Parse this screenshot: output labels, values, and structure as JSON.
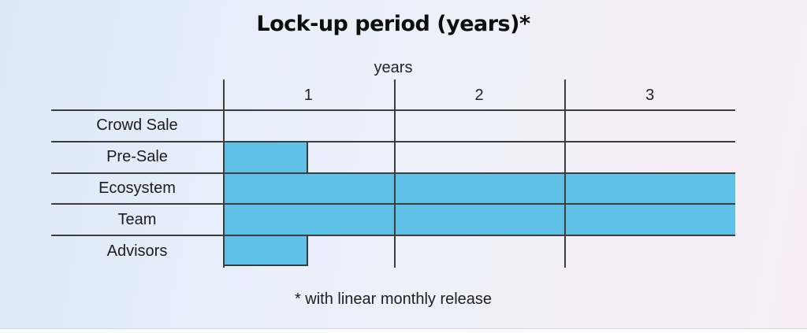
{
  "page": {
    "background_gradient": [
      "#dce8f8",
      "#f8edf5"
    ]
  },
  "chart_data": {
    "type": "bar",
    "orientation": "horizontal",
    "title": "Lock-up period (years)*",
    "axis_title": "years",
    "categories": [
      "Crowd Sale",
      "Pre-Sale",
      "Ecosystem",
      "Team",
      "Advisors"
    ],
    "values": [
      0,
      0.5,
      3,
      3,
      0.5
    ],
    "unit": "years",
    "xlim": [
      0,
      3
    ],
    "tick_labels": [
      "1",
      "2",
      "3"
    ],
    "gridline_years": [
      0,
      1,
      2
    ],
    "footnote": "* with linear monthly release",
    "bar_color": "#5fc1e6",
    "line_color": "#3d3d3d",
    "grid": true,
    "legend": false
  }
}
